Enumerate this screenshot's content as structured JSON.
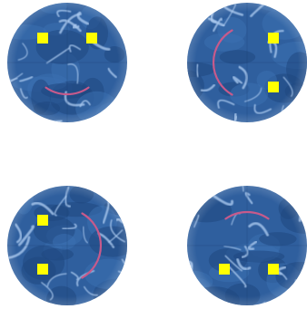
{
  "colors": {
    "background": "#ffffff",
    "face_base": "#2f5f9e",
    "face_dark": "#1f477f",
    "face_light": "#a9c8ee",
    "eye": "#ffff00",
    "mouth": "#c75a8b"
  },
  "faces": [
    {
      "name": "top-left",
      "mouth_direction": "down"
    },
    {
      "name": "top-right",
      "mouth_direction": "left"
    },
    {
      "name": "bottom-left",
      "mouth_direction": "right"
    },
    {
      "name": "bottom-right",
      "mouth_direction": "up"
    }
  ]
}
